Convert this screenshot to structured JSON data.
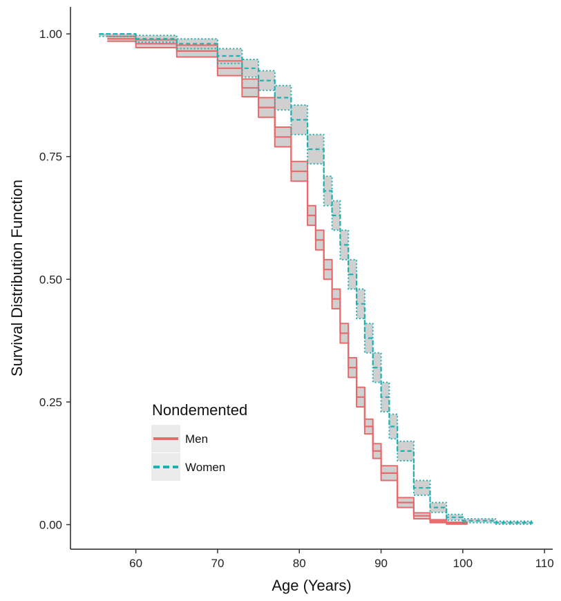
{
  "chart_data": {
    "type": "line",
    "title": "",
    "xlabel": "Age (Years)",
    "ylabel": "Survival Distribution Function",
    "xlim": [
      52,
      111
    ],
    "ylim": [
      -0.05,
      1.055
    ],
    "x_ticks": [
      60,
      70,
      80,
      90,
      100,
      110
    ],
    "x_tick_labels": [
      "60",
      "70",
      "80",
      "90",
      "100",
      "110"
    ],
    "y_ticks": [
      0,
      0.25,
      0.5,
      0.75,
      1
    ],
    "y_tick_labels": [
      "0.00",
      "0.25",
      "0.50",
      "0.75",
      "1.00"
    ],
    "grid": false,
    "legend": {
      "title": "Nondemented",
      "position": "bottom-left",
      "entries": [
        "Men",
        "Women"
      ]
    },
    "series": [
      {
        "name": "Men",
        "line_style": "solid",
        "color": "#e8696a",
        "band_color": "#c8c8c8",
        "x": [
          56.5,
          60,
          65,
          70,
          73,
          75,
          77,
          79,
          81,
          82,
          83,
          84,
          85,
          86,
          87,
          88,
          89,
          90,
          92,
          94,
          96,
          98,
          100.5
        ],
        "y": [
          0.99,
          0.98,
          0.965,
          0.93,
          0.89,
          0.85,
          0.79,
          0.72,
          0.63,
          0.58,
          0.52,
          0.46,
          0.39,
          0.32,
          0.26,
          0.2,
          0.15,
          0.105,
          0.045,
          0.018,
          0.007,
          0.003,
          0.0
        ],
        "lower": [
          0.985,
          0.972,
          0.953,
          0.915,
          0.872,
          0.83,
          0.77,
          0.7,
          0.61,
          0.56,
          0.5,
          0.44,
          0.37,
          0.3,
          0.24,
          0.185,
          0.135,
          0.09,
          0.035,
          0.012,
          0.004,
          0.001,
          0.0
        ],
        "upper": [
          0.995,
          0.988,
          0.977,
          0.945,
          0.908,
          0.87,
          0.81,
          0.74,
          0.65,
          0.6,
          0.54,
          0.48,
          0.41,
          0.34,
          0.28,
          0.215,
          0.165,
          0.12,
          0.055,
          0.024,
          0.01,
          0.005,
          0.001
        ]
      },
      {
        "name": "Women",
        "line_style": "dashed",
        "color": "#1fb0b0",
        "band_color": "#c8c8c8",
        "x": [
          55.5,
          60,
          65,
          70,
          73,
          75,
          77,
          79,
          81,
          83,
          84,
          85,
          86,
          87,
          88,
          89,
          90,
          91,
          92,
          94,
          96,
          98,
          100,
          104,
          108.5
        ],
        "y": [
          1.0,
          0.99,
          0.98,
          0.955,
          0.93,
          0.905,
          0.87,
          0.825,
          0.765,
          0.68,
          0.63,
          0.57,
          0.51,
          0.45,
          0.38,
          0.32,
          0.26,
          0.2,
          0.15,
          0.075,
          0.035,
          0.015,
          0.008,
          0.004,
          0.0
        ],
        "lower": [
          0.995,
          0.983,
          0.97,
          0.94,
          0.912,
          0.885,
          0.845,
          0.795,
          0.735,
          0.65,
          0.6,
          0.54,
          0.48,
          0.42,
          0.35,
          0.29,
          0.23,
          0.175,
          0.13,
          0.06,
          0.025,
          0.009,
          0.004,
          0.001,
          0.0
        ],
        "upper": [
          1.0,
          0.997,
          0.99,
          0.97,
          0.948,
          0.925,
          0.895,
          0.855,
          0.795,
          0.71,
          0.66,
          0.6,
          0.54,
          0.48,
          0.41,
          0.35,
          0.29,
          0.225,
          0.17,
          0.09,
          0.045,
          0.021,
          0.012,
          0.007,
          0.002
        ]
      }
    ]
  }
}
